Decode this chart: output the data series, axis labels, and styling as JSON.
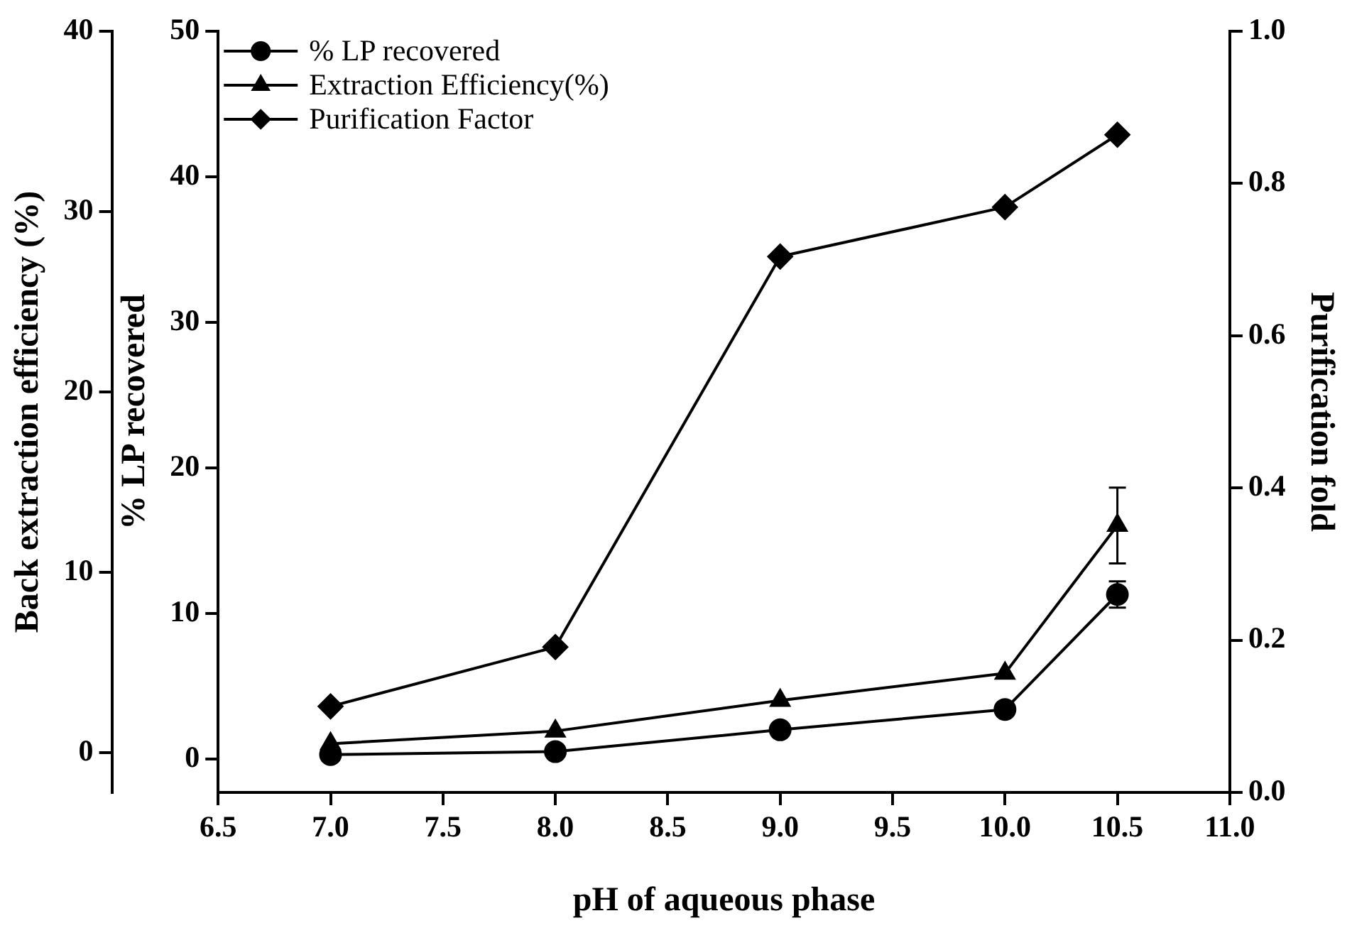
{
  "chart_data": {
    "type": "line",
    "xlabel": "pH of aqueous phase",
    "ylabel": "% LP recovered",
    "y2label": "Purification fold",
    "y3label": "Back extraction efficiency (%)",
    "x": [
      7,
      8,
      9,
      10,
      10.5
    ],
    "xlim": [
      6.5,
      11
    ],
    "xticks": [
      {
        "value": 6.5,
        "label": "6.5"
      },
      {
        "value": 7,
        "label": "7.0"
      },
      {
        "value": 7.5,
        "label": "7.5"
      },
      {
        "value": 8,
        "label": "8.0"
      },
      {
        "value": 8.5,
        "label": "8.5"
      },
      {
        "value": 9,
        "label": "9.0"
      },
      {
        "value": 9.5,
        "label": "9.5"
      },
      {
        "value": 10,
        "label": "10.0"
      },
      {
        "value": 10.5,
        "label": "10.5"
      },
      {
        "value": 11,
        "label": "11.0"
      }
    ],
    "ylim": [
      -2.3,
      50
    ],
    "yticks": [
      0,
      10,
      20,
      30,
      40,
      50
    ],
    "y2lim": [
      0,
      1
    ],
    "y2ticks": [
      {
        "value": 0,
        "label": "0.0"
      },
      {
        "value": 0.2,
        "label": "0.2"
      },
      {
        "value": 0.4,
        "label": "0.4"
      },
      {
        "value": 0.6,
        "label": "0.6"
      },
      {
        "value": 0.8,
        "label": "0.8"
      },
      {
        "value": 1,
        "label": "1.0"
      }
    ],
    "y3lim": [
      -2.2,
      40
    ],
    "y3ticks": [
      0,
      10,
      20,
      30,
      40
    ],
    "series": [
      {
        "name": "% LP recovered",
        "color": "#000000",
        "marker": "circle",
        "values": [
          0.3,
          0.5,
          2.0,
          3.4,
          11.3
        ],
        "errors": [
          null,
          null,
          null,
          null,
          0.9
        ]
      },
      {
        "name": "Extraction Efficiency(%)",
        "color": "#000000",
        "marker": "triangle",
        "axis": "y3",
        "values": [
          0.5,
          1.2,
          2.9,
          4.4,
          12.6
        ],
        "errors": [
          null,
          null,
          null,
          null,
          2.1
        ]
      },
      {
        "name": "Purification Factor",
        "color": "#000000",
        "marker": "diamond",
        "axis": "y2",
        "values": [
          0.113,
          0.191,
          0.704,
          0.769,
          0.864
        ]
      }
    ],
    "legend": "top left",
    "grid": false,
    "line_style": "solid"
  }
}
